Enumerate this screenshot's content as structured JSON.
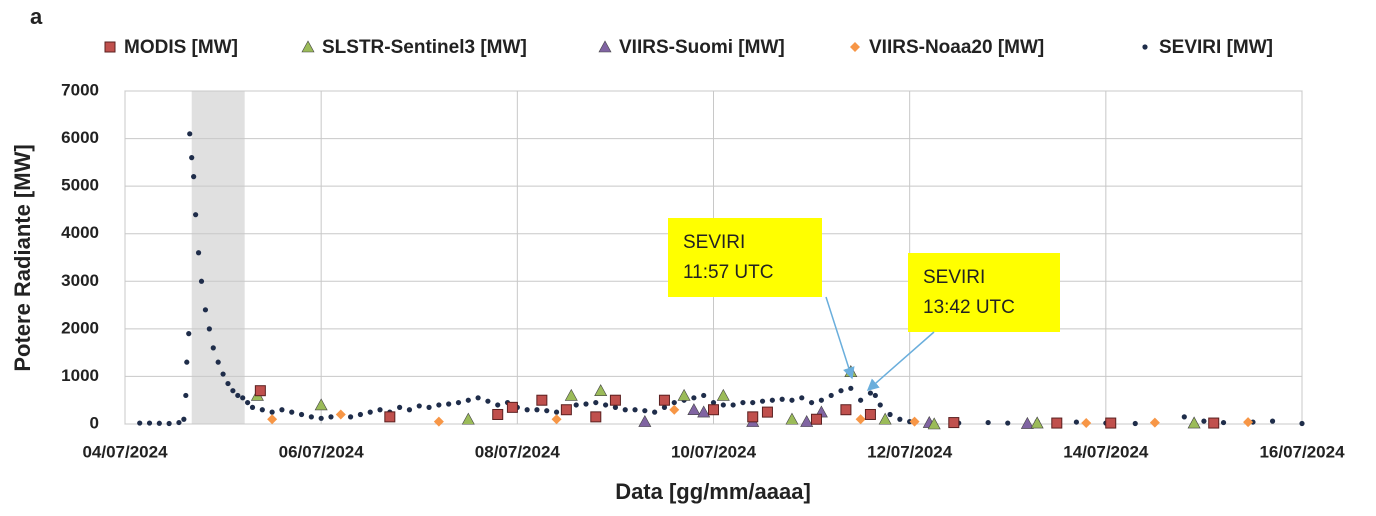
{
  "chart_data": {
    "type": "scatter",
    "panel_label": "a",
    "xlabel": "Data [gg/mm/aaaa]",
    "ylabel": "Potere Radiante [MW]",
    "xlim": [
      4,
      16
    ],
    "xticks": [
      {
        "value": 4,
        "label": "04/07/2024"
      },
      {
        "value": 6,
        "label": "06/07/2024"
      },
      {
        "value": 8,
        "label": "08/07/2024"
      },
      {
        "value": 10,
        "label": "10/07/2024"
      },
      {
        "value": 12,
        "label": "12/07/2024"
      },
      {
        "value": 14,
        "label": "14/07/2024"
      },
      {
        "value": 16,
        "label": "16/07/2024"
      }
    ],
    "ylim": [
      0,
      7000
    ],
    "yticks": [
      0,
      1000,
      2000,
      3000,
      4000,
      5000,
      6000,
      7000
    ],
    "grid": true,
    "legend": "top",
    "shaded_region": {
      "x": [
        4.68,
        5.22
      ],
      "color": "#e0e0e0"
    },
    "annotations": [
      {
        "lines": [
          "SEVIRI",
          "11:57 UTC"
        ],
        "color": "#ffff00"
      },
      {
        "lines": [
          "SEVIRI",
          "13:42 UTC"
        ],
        "color": "#ffff00"
      }
    ],
    "series": [
      {
        "name": "MODIS [MW]",
        "marker": "square",
        "color": "#c0504d",
        "x": [
          5.38,
          6.7,
          7.8,
          7.95,
          8.25,
          8.5,
          8.8,
          9.0,
          9.5,
          10.0,
          10.4,
          10.55,
          11.05,
          11.35,
          11.6,
          12.45,
          13.5,
          14.05,
          15.1
        ],
        "values": [
          700,
          150,
          200,
          350,
          500,
          300,
          150,
          500,
          500,
          300,
          150,
          250,
          100,
          300,
          200,
          30,
          20,
          20,
          20
        ]
      },
      {
        "name": "SLSTR-Sentinel3 [MW]",
        "marker": "triangle",
        "color": "#9bbb59",
        "x": [
          5.35,
          6.0,
          7.5,
          8.55,
          8.85,
          9.7,
          10.1,
          10.8,
          11.4,
          11.75,
          12.25,
          13.3,
          14.9
        ],
        "values": [
          600,
          400,
          100,
          600,
          700,
          600,
          600,
          100,
          1100,
          100,
          0,
          20,
          20
        ]
      },
      {
        "name": "VIIRS-Suomi  [MW]",
        "marker": "triangle",
        "color": "#8064a2",
        "x": [
          9.3,
          9.8,
          9.9,
          10.4,
          10.95,
          11.1,
          12.2,
          13.2
        ],
        "values": [
          50,
          300,
          250,
          50,
          50,
          250,
          30,
          10
        ]
      },
      {
        "name": "VIIRS-Noaa20 [MW]",
        "marker": "diamond",
        "color": "#f79646",
        "x": [
          5.5,
          6.2,
          7.2,
          8.4,
          9.6,
          11.5,
          12.05,
          13.8,
          14.5,
          15.45
        ],
        "values": [
          100,
          200,
          50,
          100,
          300,
          100,
          50,
          20,
          30,
          40
        ]
      },
      {
        "name": "SEVIRI [MW]",
        "marker": "circle",
        "color": "#1f2d4a",
        "x": [
          4.15,
          4.25,
          4.35,
          4.45,
          4.55,
          4.6,
          4.62,
          4.63,
          4.65,
          4.66,
          4.68,
          4.7,
          4.72,
          4.75,
          4.78,
          4.82,
          4.86,
          4.9,
          4.95,
          5.0,
          5.05,
          5.1,
          5.15,
          5.2,
          5.25,
          5.3,
          5.4,
          5.5,
          5.6,
          5.7,
          5.8,
          5.9,
          6.0,
          6.1,
          6.2,
          6.3,
          6.4,
          6.5,
          6.6,
          6.7,
          6.8,
          6.9,
          7.0,
          7.1,
          7.2,
          7.3,
          7.4,
          7.5,
          7.6,
          7.7,
          7.8,
          7.9,
          8.0,
          8.1,
          8.2,
          8.3,
          8.4,
          8.5,
          8.6,
          8.7,
          8.8,
          8.9,
          9.0,
          9.1,
          9.2,
          9.3,
          9.4,
          9.5,
          9.6,
          9.7,
          9.8,
          9.9,
          10.0,
          10.1,
          10.2,
          10.3,
          10.4,
          10.5,
          10.6,
          10.7,
          10.8,
          10.9,
          11.0,
          11.1,
          11.2,
          11.3,
          11.4,
          11.5,
          11.6,
          11.65,
          11.7,
          11.8,
          11.9,
          12.0,
          12.2,
          12.5,
          12.8,
          13.0,
          13.3,
          13.5,
          13.7,
          14.0,
          14.3,
          14.5,
          14.8,
          15.0,
          15.2,
          15.5,
          15.7,
          16.0
        ],
        "values": [
          20,
          20,
          15,
          10,
          30,
          100,
          600,
          1300,
          1900,
          6100,
          5600,
          5200,
          4400,
          3600,
          3000,
          2400,
          2000,
          1600,
          1300,
          1050,
          850,
          700,
          600,
          550,
          450,
          350,
          300,
          250,
          300,
          250,
          200,
          150,
          120,
          150,
          200,
          150,
          200,
          250,
          300,
          250,
          350,
          300,
          380,
          350,
          400,
          420,
          450,
          500,
          550,
          480,
          400,
          450,
          350,
          300,
          300,
          280,
          250,
          300,
          400,
          420,
          450,
          400,
          350,
          300,
          300,
          280,
          250,
          350,
          450,
          500,
          550,
          600,
          450,
          400,
          400,
          450,
          450,
          480,
          500,
          520,
          500,
          550,
          450,
          500,
          600,
          700,
          750,
          500,
          650,
          600,
          400,
          200,
          100,
          50,
          30,
          20,
          30,
          20,
          50,
          60,
          40,
          20,
          10,
          50,
          150,
          60,
          30,
          40,
          60,
          10
        ]
      }
    ]
  }
}
